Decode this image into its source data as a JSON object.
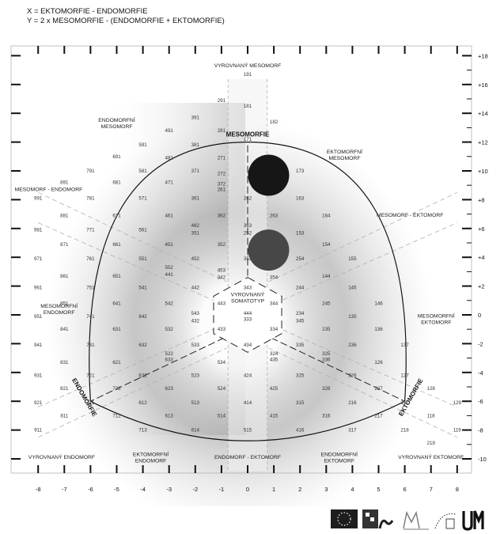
{
  "formula": {
    "line1": "X = EKTOMORFIE - ENDOMORFIE",
    "line2": "Y = 2 x MESOMORFIE - (ENDOMORFIE + EKTOMORFIE)"
  },
  "axes": {
    "x_ticks": [
      "-8",
      "-7",
      "-6",
      "-5",
      "-4",
      "-3",
      "-2",
      "-1",
      "0",
      "1",
      "2",
      "3",
      "4",
      "5",
      "6",
      "7",
      "8"
    ],
    "y_ticks": [
      "+18",
      "+16",
      "+14",
      "+12",
      "+10",
      "+8",
      "+6",
      "+4",
      "+2",
      "0",
      "-2",
      "-4",
      "-6",
      "-8",
      "-10"
    ]
  },
  "zone_labels": [
    {
      "text": [
        "VYROVNANÝ MESOMORF"
      ],
      "x": 0,
      "y": 17.2
    },
    {
      "text": [
        "ENDOMORFNÍ",
        "MESOMORF"
      ],
      "x": -5.0,
      "y": 13.4
    },
    {
      "text": [
        "EKTOMORFNÍ",
        "MESOMORF"
      ],
      "x": 3.7,
      "y": 11.2
    },
    {
      "text": [
        "MESOMORF - ENDOMORF"
      ],
      "x": -7.6,
      "y": 8.6
    },
    {
      "text": [
        "MESOMORF - EKTOMORF"
      ],
      "x": 6.2,
      "y": 6.8
    },
    {
      "text": [
        "VYROVNANÝ",
        "SOMATOTYP"
      ],
      "x": 0,
      "y": 1.3
    },
    {
      "text": [
        "MESOMORFNÍ",
        "ENDOMORF"
      ],
      "x": -7.2,
      "y": 0.5
    },
    {
      "text": [
        "MESOMORFNÍ",
        "EKTOMORF"
      ],
      "x": 7.2,
      "y": -0.2
    },
    {
      "text": [
        "VYROVNANÝ ENDOMORF"
      ],
      "x": -7.1,
      "y": -10.0
    },
    {
      "text": [
        "EKTOMORFNÍ",
        "ENDOMORF"
      ],
      "x": -3.7,
      "y": -9.8
    },
    {
      "text": [
        "ENDOMORF - EKTOMORF"
      ],
      "x": 0,
      "y": -10.0
    },
    {
      "text": [
        "ENDOMORFNÍ",
        "EKTOMORF"
      ],
      "x": 3.5,
      "y": -9.8
    },
    {
      "text": [
        "VYROVNANÝ EKTOMORF"
      ],
      "x": 7.0,
      "y": -10.0
    }
  ],
  "axis_titles": [
    {
      "text": "MESOMORFIE",
      "x": 0,
      "y": 12.4,
      "rotate": 0
    },
    {
      "text": "ENDOMORFIE",
      "x": -6.3,
      "y": -5.8,
      "rotate": 60
    },
    {
      "text": "EKTOMORFIE",
      "x": 6.3,
      "y": -5.8,
      "rotate": -60
    }
  ],
  "somatotype_codes": [
    [
      "191",
      0,
      16.7
    ],
    [
      "291",
      -1,
      14.9
    ],
    [
      "181",
      0,
      14.5
    ],
    [
      "391",
      -2,
      13.7
    ],
    [
      "182",
      1,
      13.4
    ],
    [
      "491",
      -3,
      12.8
    ],
    [
      "281",
      -1,
      12.8
    ],
    [
      "171",
      0,
      12.2
    ],
    [
      "591",
      -4,
      11.8
    ],
    [
      "381",
      -2,
      11.8
    ],
    [
      "691",
      -5,
      11.0
    ],
    [
      "481",
      -3,
      10.9
    ],
    [
      "271",
      -1,
      10.9
    ],
    [
      "173",
      2,
      10.0
    ],
    [
      "791",
      -6,
      10.0
    ],
    [
      "581",
      -4,
      10.0
    ],
    [
      "371",
      -2,
      10.0
    ],
    [
      "272",
      -1,
      9.8
    ],
    [
      "891",
      -7,
      9.2
    ],
    [
      "681",
      -5,
      9.2
    ],
    [
      "471",
      -3,
      9.2
    ],
    [
      "372",
      -1,
      9.1
    ],
    [
      "261",
      -1,
      8.7
    ],
    [
      "991",
      -8,
      8.1
    ],
    [
      "781",
      -6,
      8.1
    ],
    [
      "571",
      -4,
      8.1
    ],
    [
      "361",
      -2,
      8.1
    ],
    [
      "262",
      0,
      8.1
    ],
    [
      "163",
      2,
      8.1
    ],
    [
      "881",
      -7,
      6.9
    ],
    [
      "671",
      -5,
      6.9
    ],
    [
      "461",
      -3,
      6.9
    ],
    [
      "362",
      -1,
      6.9
    ],
    [
      "263",
      1,
      6.9
    ],
    [
      "164",
      3,
      6.9
    ],
    [
      "462",
      -2,
      6.2
    ],
    [
      "363",
      0,
      6.2
    ],
    [
      "351",
      -2,
      5.7
    ],
    [
      "252",
      0,
      5.7
    ],
    [
      "153",
      2,
      5.7
    ],
    [
      "981",
      -8,
      5.9
    ],
    [
      "771",
      -6,
      5.9
    ],
    [
      "561",
      -4,
      5.9
    ],
    [
      "871",
      -7,
      4.9
    ],
    [
      "661",
      -5,
      4.9
    ],
    [
      "451",
      -3,
      4.9
    ],
    [
      "352",
      -1,
      4.9
    ],
    [
      "154",
      3,
      4.9
    ],
    [
      "971",
      -8,
      3.9
    ],
    [
      "761",
      -6,
      3.9
    ],
    [
      "551",
      -4,
      3.9
    ],
    [
      "452",
      -2,
      3.9
    ],
    [
      "353",
      0,
      3.9
    ],
    [
      "254",
      2,
      3.9
    ],
    [
      "155",
      4,
      3.9
    ],
    [
      "552",
      -3,
      3.3
    ],
    [
      "441",
      -3,
      2.8
    ],
    [
      "453",
      -1,
      3.1
    ],
    [
      "342",
      -1,
      2.6
    ],
    [
      "144",
      3,
      2.7
    ],
    [
      "861",
      -7,
      2.7
    ],
    [
      "651",
      -5,
      2.7
    ],
    [
      "961",
      -8,
      1.9
    ],
    [
      "751",
      -6,
      1.9
    ],
    [
      "541",
      -4,
      1.9
    ],
    [
      "442",
      -2,
      1.9
    ],
    [
      "343",
      0,
      1.9
    ],
    [
      "354",
      1,
      2.6
    ],
    [
      "244",
      2,
      1.9
    ],
    [
      "145",
      4,
      1.9
    ],
    [
      "851",
      -7,
      0.8
    ],
    [
      "641",
      -5,
      0.8
    ],
    [
      "542",
      -3,
      0.8
    ],
    [
      "443",
      -1,
      0.8
    ],
    [
      "344",
      1,
      0.8
    ],
    [
      "245",
      3,
      0.8
    ],
    [
      "146",
      5,
      0.8
    ],
    [
      "444",
      0,
      0.1
    ],
    [
      "333",
      0,
      -0.3
    ],
    [
      "543",
      -2,
      0.1
    ],
    [
      "432",
      -2,
      -0.4
    ],
    [
      "234",
      2,
      0.1
    ],
    [
      "345",
      2,
      -0.4
    ],
    [
      "951",
      -8,
      -0.1
    ],
    [
      "741",
      -6,
      -0.1
    ],
    [
      "642",
      -4,
      -0.1
    ],
    [
      "135",
      4,
      -0.1
    ],
    [
      "841",
      -7,
      -1.0
    ],
    [
      "631",
      -5,
      -1.0
    ],
    [
      "532",
      -3,
      -1.0
    ],
    [
      "433",
      -1,
      -1.0
    ],
    [
      "334",
      1,
      -1.0
    ],
    [
      "235",
      3,
      -1.0
    ],
    [
      "136",
      5,
      -1.0
    ],
    [
      "941",
      -8,
      -2.1
    ],
    [
      "731",
      -6,
      -2.1
    ],
    [
      "632",
      -4,
      -2.1
    ],
    [
      "533",
      -2,
      -2.1
    ],
    [
      "434",
      0,
      -2.1
    ],
    [
      "335",
      2,
      -2.1
    ],
    [
      "236",
      4,
      -2.1
    ],
    [
      "137",
      6,
      -2.1
    ],
    [
      "522",
      -3,
      -2.7
    ],
    [
      "633",
      -3,
      -3.1
    ],
    [
      "324",
      1,
      -2.7
    ],
    [
      "435",
      1,
      -3.1
    ],
    [
      "325",
      3,
      -2.7
    ],
    [
      "336",
      3,
      -3.1
    ],
    [
      "831",
      -7,
      -3.3
    ],
    [
      "621",
      -5,
      -3.3
    ],
    [
      "534",
      -1,
      -3.3
    ],
    [
      "126",
      5,
      -3.3
    ],
    [
      "931",
      -8,
      -4.2
    ],
    [
      "721",
      -6,
      -4.2
    ],
    [
      "622",
      -4,
      -4.2
    ],
    [
      "523",
      -2,
      -4.2
    ],
    [
      "424",
      0,
      -4.2
    ],
    [
      "325",
      2,
      -4.2
    ],
    [
      "226",
      4,
      -4.2
    ],
    [
      "127",
      6,
      -4.2
    ],
    [
      "821",
      -7,
      -5.1
    ],
    [
      "722",
      -5,
      -5.1
    ],
    [
      "623",
      -3,
      -5.1
    ],
    [
      "524",
      -1,
      -5.1
    ],
    [
      "425",
      1,
      -5.1
    ],
    [
      "326",
      3,
      -5.1
    ],
    [
      "227",
      5,
      -5.1
    ],
    [
      "128",
      7,
      -5.1
    ],
    [
      "921",
      -8,
      -6.1
    ],
    [
      "711",
      -6,
      -6.1
    ],
    [
      "612",
      -4,
      -6.1
    ],
    [
      "513",
      -2,
      -6.1
    ],
    [
      "414",
      0,
      -6.1
    ],
    [
      "315",
      2,
      -6.1
    ],
    [
      "216",
      4,
      -6.1
    ],
    [
      "117",
      6,
      -6.1
    ],
    [
      "129",
      8,
      -6.1
    ],
    [
      "811",
      -7,
      -7.0
    ],
    [
      "712",
      -5,
      -7.0
    ],
    [
      "613",
      -3,
      -7.0
    ],
    [
      "514",
      -1,
      -7.0
    ],
    [
      "415",
      1,
      -7.0
    ],
    [
      "316",
      3,
      -7.0
    ],
    [
      "217",
      5,
      -7.0
    ],
    [
      "118",
      7,
      -7.0
    ],
    [
      "911",
      -8,
      -8.0
    ],
    [
      "713",
      -4,
      -8.0
    ],
    [
      "614",
      -2,
      -8.0
    ],
    [
      "515",
      0,
      -8.0
    ],
    [
      "416",
      2,
      -8.0
    ],
    [
      "317",
      4,
      -8.0
    ],
    [
      "218",
      6,
      -8.0
    ],
    [
      "119",
      8,
      -8.0
    ],
    [
      "219",
      7,
      -8.9
    ]
  ],
  "markers": [
    {
      "x": 0.8,
      "y": 9.7,
      "color": "#161616"
    },
    {
      "x": 0.8,
      "y": 4.5,
      "color": "#474747"
    }
  ]
}
